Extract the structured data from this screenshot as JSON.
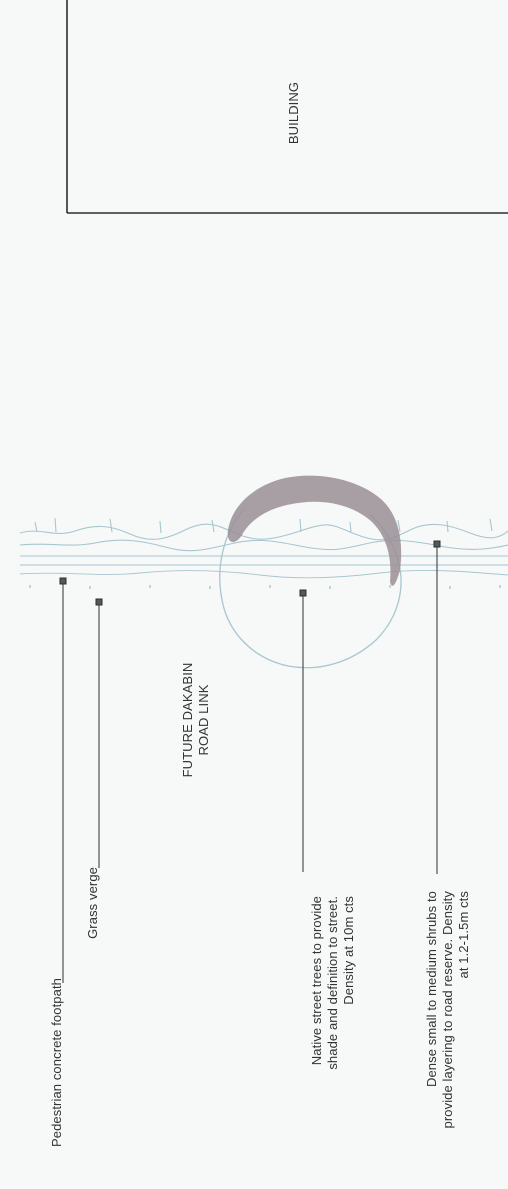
{
  "building_label": "BUILDING",
  "road_label": "FUTURE DAKABIN\nROAD LINK",
  "callouts": {
    "footpath": "Pedestrian concrete footpath",
    "verge": "Grass verge",
    "trees": "Native street trees to provide\nshade and definition to street.\nDensity at 10m cts",
    "shrubs": "Dense small to medium shrubs to\nprovide layering to road reserve. Density\nat 1.2-1.5m cts"
  },
  "colors": {
    "line": "#2e2e2e",
    "marker": "#4f5a5a",
    "planting": "#a8c6cf",
    "canopy": "#9a8f97"
  }
}
